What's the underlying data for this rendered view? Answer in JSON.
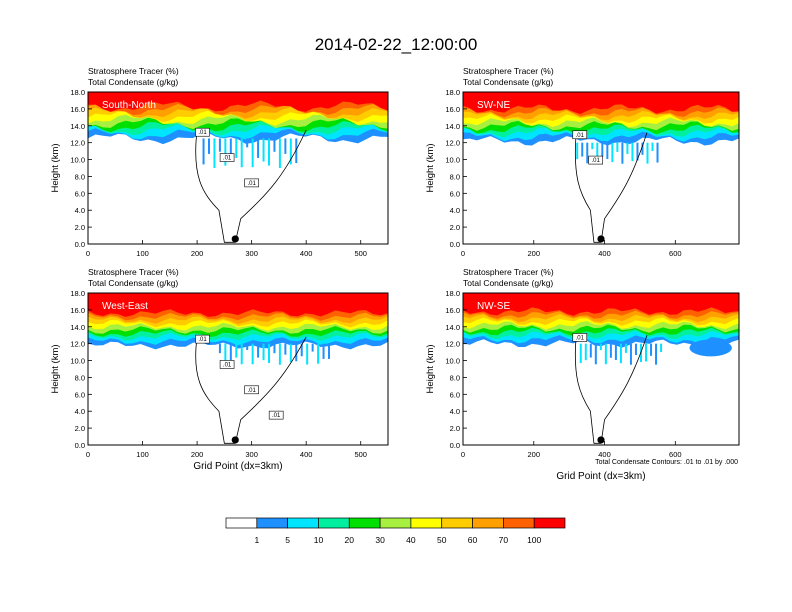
{
  "figure": {
    "title": "2014-02-22_12:00:00",
    "contour_note": "Total Condensate Contours: .01 to .01 by .000",
    "colorbar": {
      "levels": [
        "1",
        "5",
        "10",
        "20",
        "30",
        "40",
        "50",
        "60",
        "70",
        "100"
      ],
      "colors": [
        "#ffffff",
        "#1e90ff",
        "#00e5ff",
        "#00f0a0",
        "#00e000",
        "#a8f040",
        "#ffff00",
        "#ffcc00",
        "#ffa000",
        "#ff6000",
        "#ff0000"
      ]
    }
  },
  "chart_data": [
    {
      "type": "heatmap",
      "panel_label": "South-North",
      "title_line1": "Stratosphere Tracer   (%)",
      "title_line2": "Total Condensate   (g/kg)",
      "xlabel": "",
      "ylabel": "Height (km)",
      "xlim": [
        0,
        550
      ],
      "ylim": [
        0,
        18
      ],
      "xticks": [
        "0",
        "100",
        "200",
        "300",
        "400",
        "500"
      ],
      "yticks": [
        "0.0",
        "2.0",
        "4.0",
        "6.0",
        "8.0",
        "10.0",
        "12.0",
        "14.0",
        "16.0",
        "18.0"
      ],
      "marker_x": 270,
      "contour_labels": [
        ".01",
        ".01",
        ".01"
      ]
    },
    {
      "type": "heatmap",
      "panel_label": "SW-NE",
      "title_line1": "Stratosphere Tracer   (%)",
      "title_line2": "Total Condensate   (g/kg)",
      "xlabel": "",
      "ylabel": "Height (km)",
      "xlim": [
        0,
        780
      ],
      "ylim": [
        0,
        18
      ],
      "xticks": [
        "0",
        "200",
        "400",
        "600"
      ],
      "yticks": [
        "0.0",
        "2.0",
        "4.0",
        "6.0",
        "8.0",
        "10.0",
        "12.0",
        "14.0",
        "16.0",
        "18.0"
      ],
      "marker_x": 390,
      "contour_labels": [
        ".01",
        ".01"
      ]
    },
    {
      "type": "heatmap",
      "panel_label": "West-East",
      "title_line1": "Stratosphere Tracer   (%)",
      "title_line2": "Total Condensate   (g/kg)",
      "xlabel": "Grid Point (dx=3km)",
      "ylabel": "Height (km)",
      "xlim": [
        0,
        550
      ],
      "ylim": [
        0,
        18
      ],
      "xticks": [
        "0",
        "100",
        "200",
        "300",
        "400",
        "500"
      ],
      "yticks": [
        "0.0",
        "2.0",
        "4.0",
        "6.0",
        "8.0",
        "10.0",
        "12.0",
        "14.0",
        "16.0",
        "18.0"
      ],
      "marker_x": 270,
      "contour_labels": [
        ".01",
        ".01",
        ".01",
        ".01"
      ]
    },
    {
      "type": "heatmap",
      "panel_label": "NW-SE",
      "title_line1": "Stratosphere Tracer   (%)",
      "title_line2": "Total Condensate   (g/kg)",
      "xlabel": "Grid Point (dx=3km)",
      "ylabel": "Height (km)",
      "xlim": [
        0,
        780
      ],
      "ylim": [
        0,
        18
      ],
      "xticks": [
        "0",
        "200",
        "400",
        "600"
      ],
      "yticks": [
        "0.0",
        "2.0",
        "4.0",
        "6.0",
        "8.0",
        "10.0",
        "12.0",
        "14.0",
        "16.0",
        "18.0"
      ],
      "marker_x": 390,
      "contour_labels": [
        ".01"
      ]
    }
  ]
}
